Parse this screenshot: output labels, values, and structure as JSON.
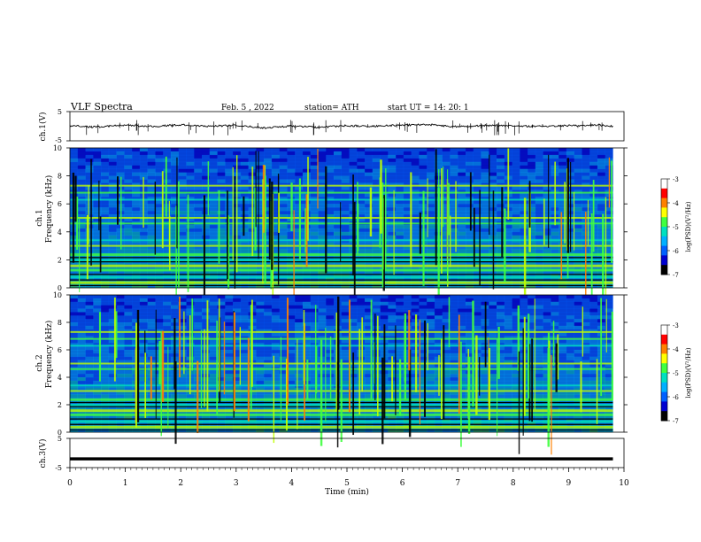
{
  "header": {
    "title": "VLF  Spectra",
    "date": "Feb. 5  , 2022",
    "station": "station= ATH",
    "start": "start  UT  =   14: 20: 1"
  },
  "colors": {
    "line": "#000000",
    "colormap": [
      "#000000",
      "#0000d0",
      "#0060ff",
      "#00b0ff",
      "#00e0c0",
      "#40ff40",
      "#c0ff00",
      "#ffff00",
      "#ff8000",
      "#ff0000",
      "#ffffff"
    ]
  },
  "chart_data": [
    {
      "type": "line",
      "name": "ch1-waveform",
      "ylabel": "ch.1(V)",
      "ylim": [
        -5,
        5
      ],
      "yticks": [
        "5",
        "-5"
      ],
      "xlim": [
        0,
        10
      ],
      "series": [
        {
          "x": [
            0.0,
            0.5,
            1.0,
            1.5,
            2.0,
            2.5,
            3.0,
            3.5,
            4.0,
            4.5,
            5.0,
            5.5,
            6.0,
            6.5,
            7.0,
            7.5,
            8.0,
            8.5,
            9.0,
            9.5,
            9.8
          ],
          "y": [
            0.2,
            -0.3,
            0.4,
            -0.1,
            0.5,
            0.0,
            0.3,
            -0.6,
            0.1,
            -0.4,
            0.2,
            0.0,
            0.4,
            0.5,
            -0.2,
            0.3,
            0.1,
            -0.1,
            0.2,
            0.4,
            0.0
          ]
        }
      ]
    },
    {
      "type": "heatmap",
      "name": "ch1-spectrogram",
      "ylabel_top": "ch.1",
      "ylabel": "Frequency  (kHz)",
      "ylim": [
        0,
        10
      ],
      "yticks": [
        "0",
        "2",
        "4",
        "6",
        "8",
        "10"
      ],
      "xlim": [
        0,
        10
      ],
      "colorbar": {
        "label": "log(PSD)(V²/Hz)",
        "range": [
          -7,
          -3
        ],
        "ticks": [
          "-3",
          "-4",
          "-5",
          "-6",
          "-7"
        ]
      }
    },
    {
      "type": "heatmap",
      "name": "ch2-spectrogram",
      "ylabel_top": "ch.2",
      "ylabel": "Frequency  (kHz)",
      "ylim": [
        0,
        10
      ],
      "yticks": [
        "0",
        "2",
        "4",
        "6",
        "8",
        "10"
      ],
      "xlim": [
        0,
        10
      ],
      "colorbar": {
        "label": "log(PSD)(V²/Hz)",
        "range": [
          -7,
          -3
        ],
        "ticks": [
          "-3",
          "-4",
          "-5",
          "-6",
          "-7"
        ]
      }
    },
    {
      "type": "line",
      "name": "ch3-waveform",
      "ylabel": "ch.3(V)",
      "ylim": [
        -5,
        5
      ],
      "yticks": [
        "5",
        "-5"
      ],
      "xlim": [
        0,
        10
      ],
      "series": [
        {
          "x": [
            0.0,
            9.8
          ],
          "y": [
            -2.0,
            -2.0
          ]
        }
      ]
    }
  ],
  "xaxis": {
    "label": "Time  (min)",
    "ticks": [
      "0",
      "1",
      "2",
      "3",
      "4",
      "5",
      "6",
      "7",
      "8",
      "9",
      "10"
    ]
  }
}
